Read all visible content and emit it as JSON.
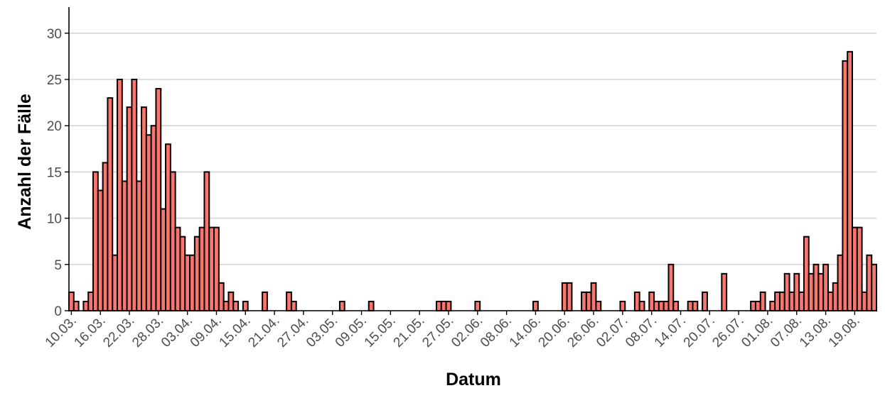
{
  "chart_data": {
    "type": "bar",
    "xlabel": "Datum",
    "ylabel": "Anzahl der Fälle",
    "ylim": [
      0,
      33
    ],
    "yticks": [
      0,
      5,
      10,
      15,
      20,
      25,
      30
    ],
    "grid": "horizontal",
    "bar_color": "#f8766d",
    "bar_outline": "#000000",
    "start_date": "2020-03-10",
    "x_tick_labels": [
      "10.03.",
      "16.03.",
      "22.03.",
      "28.03.",
      "03.04.",
      "09.04.",
      "15.04.",
      "21.04.",
      "27.04.",
      "03.05.",
      "09.05.",
      "15.05.",
      "21.05.",
      "27.05.",
      "02.06.",
      "08.06.",
      "14.06.",
      "20.06.",
      "26.06.",
      "02.07.",
      "08.07.",
      "14.07.",
      "20.07.",
      "26.07.",
      "01.08.",
      "07.08.",
      "13.08.",
      "19.08."
    ],
    "values": [
      2,
      1,
      0,
      1,
      2,
      15,
      13,
      16,
      23,
      6,
      25,
      14,
      22,
      25,
      14,
      22,
      19,
      20,
      24,
      11,
      18,
      15,
      9,
      8,
      6,
      6,
      8,
      9,
      15,
      9,
      9,
      3,
      1,
      2,
      1,
      0,
      1,
      0,
      0,
      0,
      2,
      0,
      0,
      0,
      0,
      2,
      1,
      0,
      0,
      0,
      0,
      0,
      0,
      0,
      0,
      0,
      1,
      0,
      0,
      0,
      0,
      0,
      1,
      0,
      0,
      0,
      0,
      0,
      0,
      0,
      0,
      0,
      0,
      0,
      0,
      0,
      1,
      1,
      1,
      0,
      0,
      0,
      0,
      0,
      1,
      0,
      0,
      0,
      0,
      0,
      0,
      0,
      0,
      0,
      0,
      0,
      1,
      0,
      0,
      0,
      0,
      0,
      3,
      3,
      0,
      0,
      2,
      2,
      3,
      1,
      0,
      0,
      0,
      0,
      1,
      0,
      0,
      2,
      1,
      0,
      2,
      1,
      1,
      1,
      5,
      1,
      0,
      0,
      1,
      1,
      0,
      2,
      0,
      0,
      0,
      4,
      0,
      0,
      0,
      0,
      0,
      1,
      1,
      2,
      0,
      1,
      2,
      2,
      4,
      2,
      4,
      2,
      8,
      4,
      5,
      4,
      5,
      2,
      3,
      6,
      27,
      28,
      9,
      9,
      2,
      6,
      5
    ]
  }
}
